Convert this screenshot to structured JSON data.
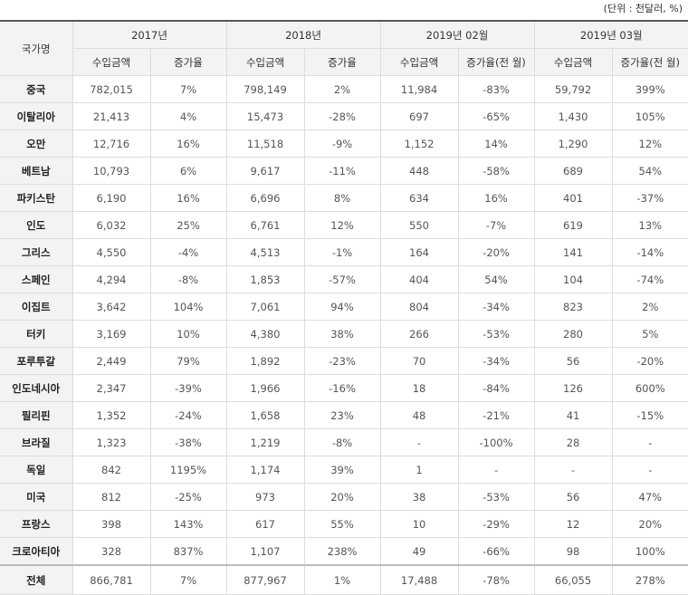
{
  "unit_note": "(단위 : 천달러, %)",
  "header": {
    "country_label": "국가명",
    "periods": [
      "2017년",
      "2018년",
      "2019년 02월",
      "2019년 03월"
    ],
    "subheaders": [
      "수입금액",
      "증가율",
      "수입금액",
      "증가율",
      "수입금액",
      "증가율(전 월)",
      "수입금액",
      "증가율(전 월)"
    ]
  },
  "rows": [
    [
      "중국",
      "782,015",
      "7%",
      "798,149",
      "2%",
      "11,984",
      "-83%",
      "59,792",
      "399%"
    ],
    [
      "이탈리아",
      "21,413",
      "4%",
      "15,473",
      "-28%",
      "697",
      "-65%",
      "1,430",
      "105%"
    ],
    [
      "오만",
      "12,716",
      "16%",
      "11,518",
      "-9%",
      "1,152",
      "14%",
      "1,290",
      "12%"
    ],
    [
      "베트남",
      "10,793",
      "6%",
      "9,617",
      "-11%",
      "448",
      "-58%",
      "689",
      "54%"
    ],
    [
      "파키스탄",
      "6,190",
      "16%",
      "6,696",
      "8%",
      "634",
      "16%",
      "401",
      "-37%"
    ],
    [
      "인도",
      "6,032",
      "25%",
      "6,761",
      "12%",
      "550",
      "-7%",
      "619",
      "13%"
    ],
    [
      "그리스",
      "4,550",
      "-4%",
      "4,513",
      "-1%",
      "164",
      "-20%",
      "141",
      "-14%"
    ],
    [
      "스페인",
      "4,294",
      "-8%",
      "1,853",
      "-57%",
      "404",
      "54%",
      "104",
      "-74%"
    ],
    [
      "이집트",
      "3,642",
      "104%",
      "7,061",
      "94%",
      "804",
      "-34%",
      "823",
      "2%"
    ],
    [
      "터키",
      "3,169",
      "10%",
      "4,380",
      "38%",
      "266",
      "-53%",
      "280",
      "5%"
    ],
    [
      "포루투갈",
      "2,449",
      "79%",
      "1,892",
      "-23%",
      "70",
      "-34%",
      "56",
      "-20%"
    ],
    [
      "인도네시아",
      "2,347",
      "-39%",
      "1,966",
      "-16%",
      "18",
      "-84%",
      "126",
      "600%"
    ],
    [
      "필리핀",
      "1,352",
      "-24%",
      "1,658",
      "23%",
      "48",
      "-21%",
      "41",
      "-15%"
    ],
    [
      "브라질",
      "1,323",
      "-38%",
      "1,219",
      "-8%",
      "-",
      "-100%",
      "28",
      "-"
    ],
    [
      "독일",
      "842",
      "1195%",
      "1,174",
      "39%",
      "1",
      "-",
      "-",
      "-"
    ],
    [
      "미국",
      "812",
      "-25%",
      "973",
      "20%",
      "38",
      "-53%",
      "56",
      "47%"
    ],
    [
      "프랑스",
      "398",
      "143%",
      "617",
      "55%",
      "10",
      "-29%",
      "12",
      "20%"
    ],
    [
      "크로아티아",
      "328",
      "837%",
      "1,107",
      "238%",
      "49",
      "-66%",
      "98",
      "100%"
    ]
  ],
  "total": [
    "전체",
    "866,781",
    "7%",
    "877,967",
    "1%",
    "17,488",
    "-78%",
    "66,055",
    "278%"
  ]
}
